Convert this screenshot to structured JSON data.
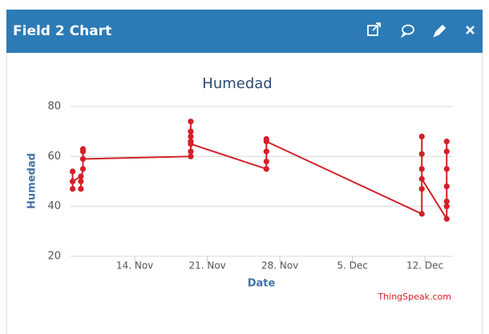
{
  "header": {
    "title": "Field 2 Chart"
  },
  "chart_data": {
    "type": "line",
    "title": "Humedad",
    "xlabel": "Date",
    "ylabel": "Humedad",
    "credit": "ThingSpeak.com",
    "x": [
      8.0,
      8.0,
      8.0,
      8.0,
      8.8,
      8.8,
      8.8,
      9.0,
      9.0,
      9.0,
      9.0,
      19.4,
      19.4,
      19.4,
      19.4,
      19.4,
      19.4,
      19.4,
      26.7,
      26.7,
      26.7,
      26.7,
      26.7,
      41.7,
      41.7,
      41.7,
      41.7,
      41.7,
      41.7,
      44.1,
      44.1,
      44.1,
      44.1,
      44.1,
      44.1,
      44.1
    ],
    "series": [
      {
        "color": "#d42027",
        "values": [
          47,
          50,
          54,
          50,
          52,
          47,
          50,
          55,
          62,
          63,
          59,
          60,
          62,
          66,
          70,
          74,
          68,
          65,
          55,
          58,
          62,
          67,
          66,
          37,
          47,
          55,
          61,
          68,
          51,
          35,
          40,
          48,
          55,
          62,
          66,
          42
        ]
      }
    ],
    "xlim": [
      7.8,
      44.7
    ],
    "xticks": [
      {
        "value": 14,
        "label": "14. Nov"
      },
      {
        "value": 21,
        "label": "21. Nov"
      },
      {
        "value": 28,
        "label": "28. Nov"
      },
      {
        "value": 35,
        "label": "5. Dec"
      },
      {
        "value": 42,
        "label": "12. Dec"
      }
    ],
    "ylim": [
      20,
      80
    ],
    "yticks": [
      20,
      40,
      60,
      80
    ],
    "grid": true
  }
}
